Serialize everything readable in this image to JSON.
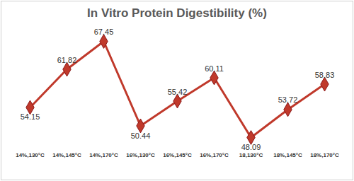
{
  "chart_data": {
    "type": "line",
    "title": "In Vitro Protein Digestibility (%)",
    "categories": [
      "14%,130°C",
      "14%,145°C",
      "14%,170°C",
      "16%,130°C",
      "16%,145°C",
      "16%,170°C",
      "18,130°C",
      "18%,145°C",
      "18%,170°C"
    ],
    "values": [
      54.15,
      61.82,
      67.45,
      50.44,
      55.42,
      60.11,
      48.09,
      53.72,
      58.83
    ],
    "color": "#c0392b",
    "marker": "diamond",
    "data_labels": true,
    "tick_labels": "x",
    "grid": false
  }
}
